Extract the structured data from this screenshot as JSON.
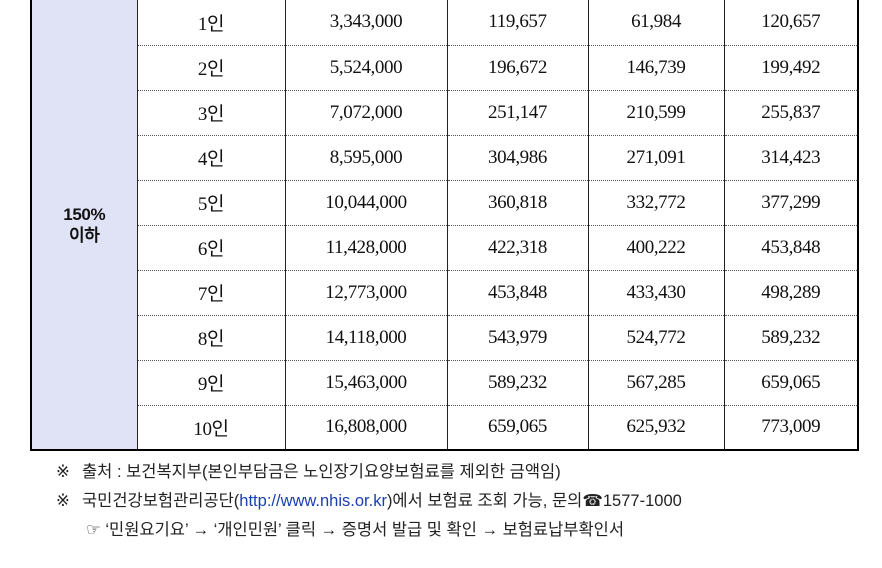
{
  "table": {
    "group_label_line1": "150%",
    "group_label_line2": "이하",
    "rows": [
      {
        "people": "1인",
        "c1": "3,343,000",
        "c2": "119,657",
        "c3": "61,984",
        "c4": "120,657"
      },
      {
        "people": "2인",
        "c1": "5,524,000",
        "c2": "196,672",
        "c3": "146,739",
        "c4": "199,492"
      },
      {
        "people": "3인",
        "c1": "7,072,000",
        "c2": "251,147",
        "c3": "210,599",
        "c4": "255,837"
      },
      {
        "people": "4인",
        "c1": "8,595,000",
        "c2": "304,986",
        "c3": "271,091",
        "c4": "314,423"
      },
      {
        "people": "5인",
        "c1": "10,044,000",
        "c2": "360,818",
        "c3": "332,772",
        "c4": "377,299"
      },
      {
        "people": "6인",
        "c1": "11,428,000",
        "c2": "422,318",
        "c3": "400,222",
        "c4": "453,848"
      },
      {
        "people": "7인",
        "c1": "12,773,000",
        "c2": "453,848",
        "c3": "433,430",
        "c4": "498,289"
      },
      {
        "people": "8인",
        "c1": "14,118,000",
        "c2": "543,979",
        "c3": "524,772",
        "c4": "589,232"
      },
      {
        "people": "9인",
        "c1": "15,463,000",
        "c2": "589,232",
        "c3": "567,285",
        "c4": "659,065"
      },
      {
        "people": "10인",
        "c1": "16,808,000",
        "c2": "659,065",
        "c3": "625,932",
        "c4": "773,009"
      }
    ]
  },
  "notes": {
    "mark": "※",
    "source": "출처 : 보건복지부(본인부담금은 노인장기요양보험료를 제외한 금액임)",
    "nhis_prefix": "국민건강보험관리공단(",
    "nhis_link": "http://www.nhis.or.kr",
    "nhis_suffix": ")에서 보험료 조회 가능, 문의☎1577-1000",
    "path_text": "☞ ‘민원요기요’ → ‘개인민원’ 클릭 → 증명서 발급 및 확인 → 보험료납부확인서"
  }
}
